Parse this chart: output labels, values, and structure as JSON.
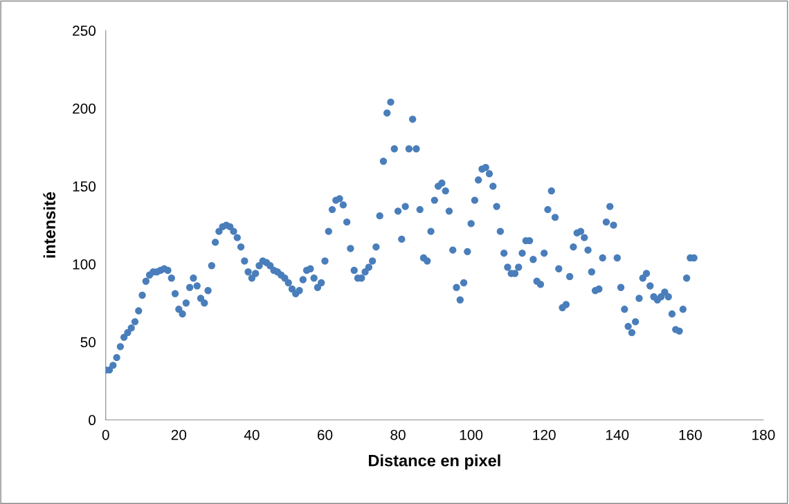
{
  "chart_data": {
    "type": "scatter",
    "xlabel": "Distance en pixel",
    "ylabel": "intensité",
    "xlim": [
      0,
      180
    ],
    "xticks": [
      0,
      20,
      40,
      60,
      80,
      100,
      120,
      140,
      160,
      180
    ],
    "ylim": [
      0,
      250
    ],
    "yticks": [
      0,
      50,
      100,
      150,
      200,
      250
    ],
    "grid": false,
    "legend": false,
    "marker": "circle",
    "series": [
      {
        "color": "#4a7ebb",
        "x": [
          0,
          1,
          2,
          3,
          4,
          5,
          6,
          7,
          8,
          9,
          10,
          11,
          12,
          13,
          14,
          15,
          16,
          17,
          18,
          19,
          20,
          21,
          22,
          23,
          24,
          25,
          26,
          27,
          28,
          29,
          30,
          31,
          32,
          33,
          34,
          35,
          36,
          37,
          38,
          39,
          40,
          41,
          42,
          43,
          44,
          45,
          46,
          47,
          48,
          49,
          50,
          51,
          52,
          53,
          54,
          55,
          56,
          57,
          58,
          59,
          60,
          61,
          62,
          63,
          64,
          65,
          66,
          67,
          68,
          69,
          70,
          71,
          72,
          73,
          74,
          75,
          76,
          77,
          78,
          79,
          80,
          81,
          82,
          83,
          84,
          85,
          86,
          87,
          88,
          89,
          90,
          91,
          92,
          93,
          94,
          95,
          96,
          97,
          98,
          99,
          100,
          101,
          102,
          103,
          104,
          105,
          106,
          107,
          108,
          109,
          110,
          111,
          112,
          113,
          114,
          115,
          116,
          117,
          118,
          119,
          120,
          121,
          122,
          123,
          124,
          125,
          126,
          127,
          128,
          129,
          130,
          131,
          132,
          133,
          134,
          135,
          136,
          137,
          138,
          139,
          140,
          141,
          142,
          143,
          144,
          145,
          146,
          147,
          148,
          149,
          150,
          151,
          152,
          153,
          154,
          155,
          156,
          157,
          158,
          159,
          160,
          161
        ],
        "values": [
          32,
          32,
          35,
          40,
          47,
          53,
          56,
          59,
          63,
          70,
          80,
          89,
          93,
          95,
          95,
          96,
          97,
          96,
          91,
          81,
          71,
          68,
          75,
          85,
          91,
          86,
          78,
          75,
          83,
          99,
          114,
          121,
          124,
          125,
          124,
          121,
          117,
          111,
          102,
          95,
          91,
          94,
          99,
          102,
          101,
          99,
          96,
          95,
          93,
          91,
          88,
          84,
          81,
          83,
          90,
          96,
          97,
          91,
          85,
          88,
          102,
          121,
          135,
          141,
          142,
          138,
          127,
          110,
          96,
          91,
          91,
          95,
          98,
          102,
          111,
          131,
          166,
          197,
          204,
          174,
          134,
          116,
          137,
          174,
          193,
          174,
          135,
          104,
          102,
          121,
          141,
          150,
          152,
          147,
          134,
          109,
          85,
          77,
          88,
          108,
          126,
          141,
          154,
          161,
          162,
          158,
          150,
          137,
          121,
          107,
          98,
          94,
          94,
          98,
          107,
          115,
          115,
          103,
          89,
          87,
          107,
          135,
          147,
          130,
          97,
          72,
          74,
          92,
          111,
          120,
          121,
          117,
          109,
          95,
          83,
          84,
          104,
          127,
          137,
          125,
          104,
          85,
          71,
          60,
          56,
          63,
          78,
          91,
          94,
          86,
          79,
          77,
          79,
          82,
          79,
          68,
          58,
          57,
          71,
          91,
          104,
          104
        ]
      }
    ]
  }
}
